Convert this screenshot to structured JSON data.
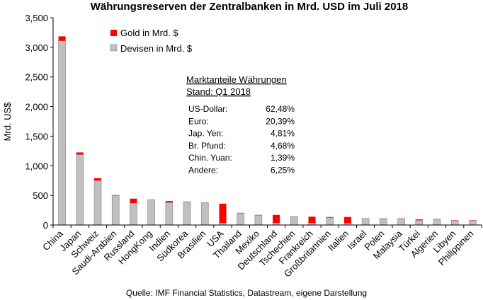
{
  "chart_data": {
    "type": "bar",
    "stacked": true,
    "title": "Währungsreserven der Zentralbanken in Mrd. USD im Juli 2018",
    "ylabel": "Mrd. US$",
    "xlabel": "",
    "ylim": [
      0,
      3500
    ],
    "yticks": [
      "0",
      "500",
      "1,000",
      "1,500",
      "2,000",
      "2,500",
      "3,000",
      "3,500"
    ],
    "ytick_values": [
      0,
      500,
      1000,
      1500,
      2000,
      2500,
      3000,
      3500
    ],
    "grid": false,
    "legend_position": "top-left",
    "categories": [
      "China",
      "Japan",
      "Schweiz",
      "Saudi-Arabien",
      "Russland",
      "HongKong",
      "Indien",
      "Südkorea",
      "Brasilien",
      "USA",
      "Thailand",
      "Mexiko",
      "Deutschland",
      "Tschechien",
      "Frankreich",
      "Großbritannien",
      "Italien",
      "Israel",
      "Polen",
      "Malaysia",
      "Türkei",
      "Algerien",
      "Libyen",
      "Philippinen"
    ],
    "series": [
      {
        "name": "Devisen in Mrd. $",
        "color": "#c0c0c0",
        "values": [
          3110,
          1190,
          750,
          500,
          370,
          430,
          380,
          390,
          375,
          35,
          200,
          165,
          35,
          145,
          35,
          125,
          30,
          110,
          105,
          105,
          80,
          95,
          75,
          75
        ]
      },
      {
        "name": "Gold in Mrd. $",
        "color": "#ff0000",
        "values": [
          75,
          35,
          40,
          5,
          75,
          0,
          25,
          5,
          3,
          325,
          5,
          5,
          135,
          0,
          105,
          10,
          105,
          0,
          5,
          5,
          15,
          5,
          5,
          5
        ]
      }
    ]
  },
  "legend": [
    {
      "label": "Gold in Mrd. $",
      "color": "#ff0000"
    },
    {
      "label": "Devisen in Mrd. $",
      "color": "#c0c0c0"
    }
  ],
  "market_share": {
    "heading": "Marktanteile  Währungen",
    "subheading": "Stand:  Q1 2018",
    "rows": [
      {
        "currency": "US-Dollar:",
        "share": "62,48%"
      },
      {
        "currency": "Euro:",
        "share": "20,39%"
      },
      {
        "currency": "Jap. Yen:",
        "share": "4,81%"
      },
      {
        "currency": "Br. Pfund:",
        "share": "4,68%"
      },
      {
        "currency": "Chin. Yuan:",
        "share": "1,39%"
      },
      {
        "currency": "Andere:",
        "share": "6,25%"
      }
    ]
  },
  "source": "Quelle: IMF Financial Statistics, Datastream, eigene Darstellung"
}
